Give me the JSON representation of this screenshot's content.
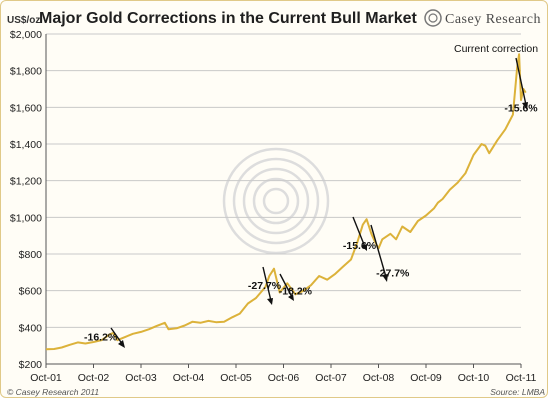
{
  "header": {
    "title": "Major Gold Corrections in the Current Bull Market",
    "brand_logo_text": "Casey Research"
  },
  "footer": {
    "copyright": "© Casey Research 2011",
    "source": "Source: LMBA"
  },
  "colors": {
    "line": "#dcb23a",
    "grid": "#c9c9c9",
    "frame_border": "#e0c988",
    "watermark": "#dddddd"
  },
  "chart_data": {
    "type": "line",
    "title": "Major Gold Corrections in the Current Bull Market",
    "ylabel": "US$/oz",
    "xlabel": "",
    "ylim": [
      200,
      2000
    ],
    "y_ticks": [
      200,
      400,
      600,
      800,
      1000,
      1200,
      1400,
      1600,
      1800,
      2000
    ],
    "y_tick_labels": [
      "$200",
      "$400",
      "$600",
      "$800",
      "$1,000",
      "$1,200",
      "$1,400",
      "$1,600",
      "$1,800",
      "$2,000"
    ],
    "x_tick_labels": [
      "Oct-01",
      "Oct-02",
      "Oct-03",
      "Oct-04",
      "Oct-05",
      "Oct-06",
      "Oct-07",
      "Oct-08",
      "Oct-09",
      "Oct-10",
      "Oct-11"
    ],
    "grid": "horizontal",
    "legend": "none",
    "series": [
      {
        "x": [
          2001.75,
          2001.92,
          2002.08,
          2002.25,
          2002.42,
          2002.58,
          2002.75,
          2002.92,
          2003.08,
          2003.17,
          2003.25,
          2003.42,
          2003.58,
          2003.75,
          2003.92,
          2004.08,
          2004.25,
          2004.33,
          2004.5,
          2004.67,
          2004.83,
          2005.0,
          2005.17,
          2005.33,
          2005.5,
          2005.67,
          2005.83,
          2006.0,
          2006.17,
          2006.37,
          2006.45,
          2006.55,
          2006.67,
          2006.83,
          2007.0,
          2007.17,
          2007.33,
          2007.5,
          2007.67,
          2007.83,
          2008.0,
          2008.17,
          2008.3,
          2008.42,
          2008.5,
          2008.6,
          2008.67,
          2008.75,
          2008.83,
          2009.0,
          2009.12,
          2009.25,
          2009.42,
          2009.58,
          2009.75,
          2009.92,
          2010.0,
          2010.1,
          2010.25,
          2010.42,
          2010.58,
          2010.75,
          2010.92,
          2011.0,
          2011.08,
          2011.25,
          2011.42,
          2011.5,
          2011.58,
          2011.67,
          2011.71,
          2011.75,
          2011.8,
          2011.85
        ],
        "y": [
          280,
          282,
          290,
          305,
          318,
          312,
          320,
          330,
          360,
          370,
          330,
          348,
          365,
          375,
          390,
          408,
          425,
          390,
          395,
          410,
          430,
          425,
          435,
          428,
          430,
          455,
          475,
          530,
          560,
          620,
          680,
          720,
          590,
          640,
          580,
          600,
          630,
          680,
          660,
          690,
          730,
          770,
          860,
          960,
          990,
          910,
          870,
          830,
          880,
          910,
          880,
          950,
          920,
          980,
          1010,
          1050,
          1080,
          1100,
          1150,
          1190,
          1240,
          1340,
          1400,
          1390,
          1350,
          1420,
          1480,
          1520,
          1560,
          1820,
          1890,
          1640,
          1700,
          1680
        ]
      }
    ],
    "annotations": [
      {
        "text": "-16.2%",
        "x": 2002.9,
        "y": 350
      },
      {
        "text": "-27.7%",
        "x": 2006.35,
        "y": 632
      },
      {
        "text": "-18.2%",
        "x": 2007.0,
        "y": 600
      },
      {
        "text": "-15.6%",
        "x": 2008.35,
        "y": 850
      },
      {
        "text": "-27.7%",
        "x": 2009.05,
        "y": 700
      },
      {
        "text": "-15.6%",
        "x": 2011.75,
        "y": 1600
      }
    ],
    "note": "Current correction"
  }
}
